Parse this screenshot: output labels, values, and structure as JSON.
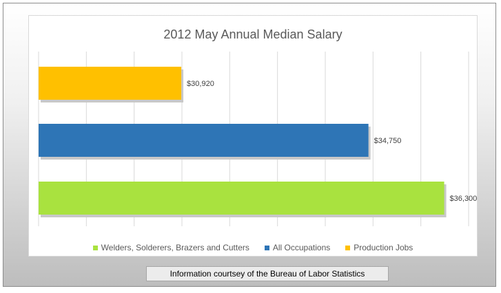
{
  "chart_data": {
    "type": "bar",
    "orientation": "horizontal",
    "title": "2012 May Annual Median Salary",
    "categories": [
      "Production Jobs",
      "All Occupations",
      "Welders, Solderers, Brazers and Cutters"
    ],
    "values": [
      30920,
      34750,
      36300
    ],
    "value_labels": [
      "$30,920",
      "$34,750",
      "$36,300"
    ],
    "colors": [
      "#ffc000",
      "#2e75b6",
      "#a9e23f"
    ],
    "xlim": [
      28000,
      36800
    ],
    "xlabel": "",
    "ylabel": "",
    "grid": true,
    "legend_position": "bottom",
    "legend": [
      {
        "name": "Welders, Solderers, Brazers and Cutters",
        "color": "#a9e23f"
      },
      {
        "name": "All Occupations",
        "color": "#2e75b6"
      },
      {
        "name": "Production Jobs",
        "color": "#ffc000"
      }
    ]
  },
  "source_note": "Information courtsey of the Bureau of Labor Statistics"
}
